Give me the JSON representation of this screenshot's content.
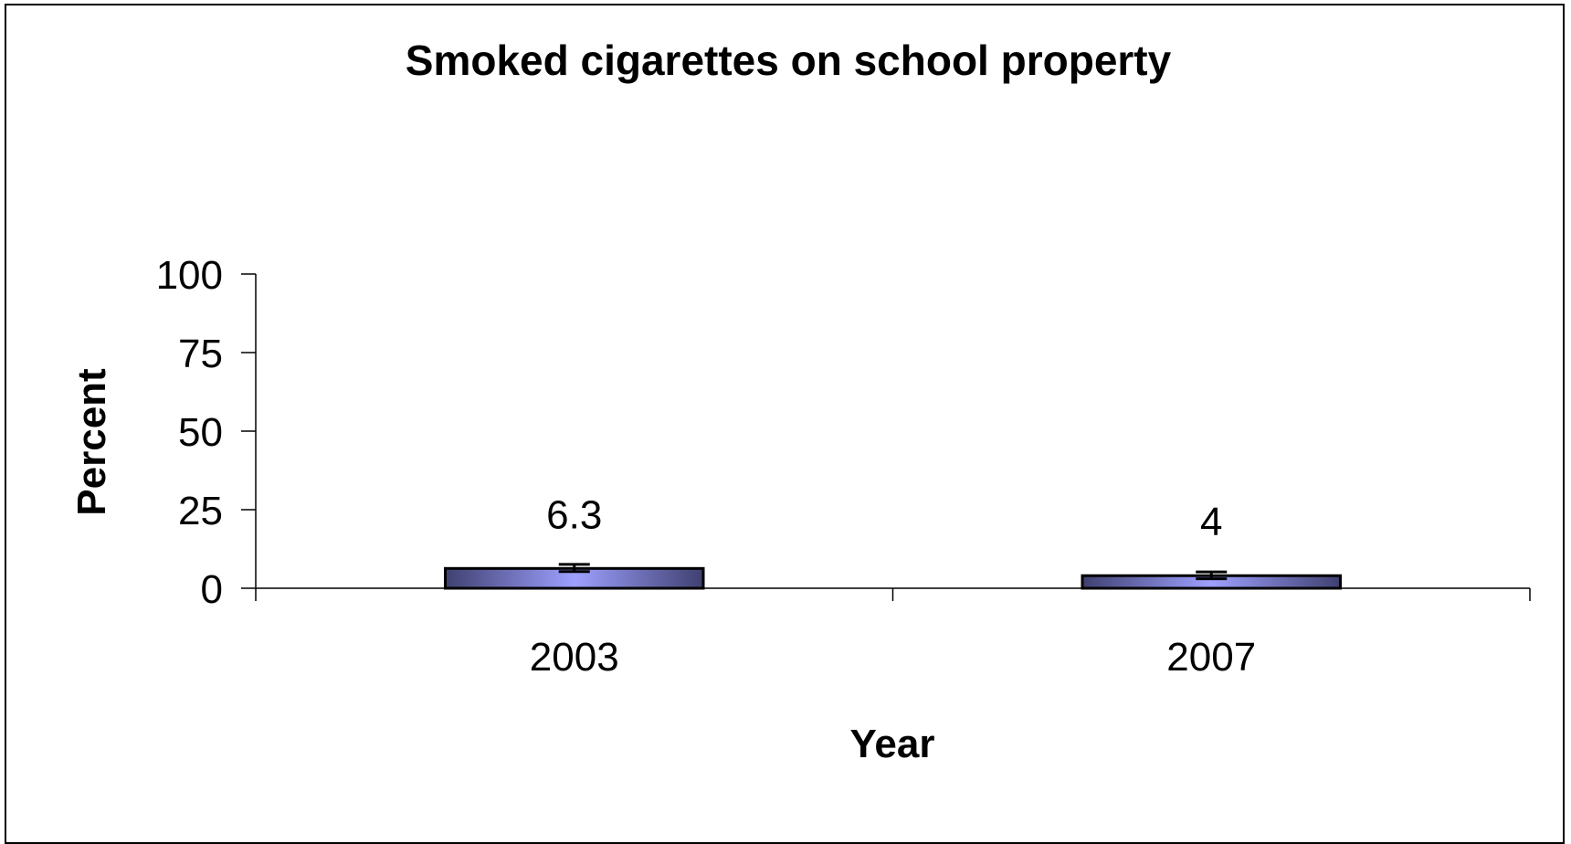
{
  "chart_data": {
    "type": "bar",
    "title": "Smoked cigarettes on school property",
    "xlabel": "Year",
    "ylabel": "Percent",
    "categories": [
      "2003",
      "2007"
    ],
    "values": [
      6.3,
      4
    ],
    "data_labels": [
      "6.3",
      "4"
    ],
    "error_bars": [
      {
        "low": 5.3,
        "high": 7.6
      },
      {
        "low": 3.0,
        "high": 5.2
      }
    ],
    "ylim": [
      0,
      100
    ],
    "yticks": [
      0,
      25,
      50,
      75,
      100
    ],
    "ytick_labels": [
      "0",
      "25",
      "50",
      "75",
      "100"
    ],
    "grid": false,
    "legend": "none",
    "colors": {
      "bar_edge": "#8A8CF4",
      "bar_center": "#9EA0FF",
      "bar_outer": "#3F4070",
      "outline": "#000000"
    }
  }
}
